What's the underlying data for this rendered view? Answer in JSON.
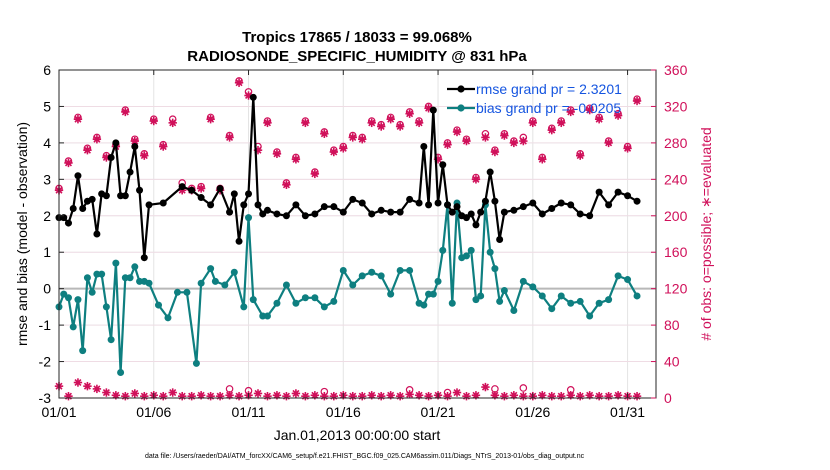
{
  "chart_data": {
    "type": "line",
    "title_line1": "Tropics 17865 / 18033 = 99.068%",
    "title_line2": "RADIOSONDE_SPECIFIC_HUMIDITY @ 831 hPa",
    "xlabel": "Jan.01,2013 00:00:00 start",
    "ylabel_left": "rmse and bias (model - observation)",
    "ylabel_right": "# of obs: o=possible; ∗=evaluated",
    "xlim": [
      0,
      31.5
    ],
    "ylim_left": [
      -3,
      6
    ],
    "ylim_right": [
      0,
      360
    ],
    "x_ticks": [
      {
        "pos": 0,
        "label": "01/01"
      },
      {
        "pos": 5,
        "label": "01/06"
      },
      {
        "pos": 10,
        "label": "01/11"
      },
      {
        "pos": 15,
        "label": "01/16"
      },
      {
        "pos": 20,
        "label": "01/21"
      },
      {
        "pos": 25,
        "label": "01/26"
      },
      {
        "pos": 30,
        "label": "01/31"
      }
    ],
    "y_ticks_left": [
      "-3",
      "-2",
      "-1",
      "0",
      "1",
      "2",
      "3",
      "4",
      "5",
      "6"
    ],
    "y_ticks_right": [
      "0",
      "40",
      "80",
      "120",
      "160",
      "200",
      "240",
      "280",
      "320",
      "360"
    ],
    "legend": [
      {
        "label": "rmse grand pr = 2.3201",
        "color": "#000000"
      },
      {
        "label": "bias grand pr = -0.0205",
        "color": "#0e7f80"
      }
    ],
    "rmse": [
      [
        0,
        1.95
      ],
      [
        0.25,
        1.95
      ],
      [
        0.5,
        1.8
      ],
      [
        0.75,
        2.2
      ],
      [
        1,
        3.1
      ],
      [
        1.25,
        2.2
      ],
      [
        1.5,
        2.4
      ],
      [
        1.75,
        2.45
      ],
      [
        2,
        1.5
      ],
      [
        2.25,
        2.6
      ],
      [
        2.5,
        2.55
      ],
      [
        2.75,
        3.6
      ],
      [
        3,
        4.0
      ],
      [
        3.25,
        2.55
      ],
      [
        3.5,
        2.55
      ],
      [
        3.75,
        3.2
      ],
      [
        4,
        3.9
      ],
      [
        4.25,
        2.7
      ],
      [
        4.5,
        0.85
      ],
      [
        4.75,
        2.3
      ],
      [
        5.5,
        2.35
      ],
      [
        6.5,
        2.8
      ],
      [
        7,
        2.7
      ],
      [
        7.5,
        2.5
      ],
      [
        8,
        2.3
      ],
      [
        8.5,
        2.75
      ],
      [
        9,
        2.1
      ],
      [
        9.25,
        2.6
      ],
      [
        9.5,
        1.3
      ],
      [
        9.75,
        2.3
      ],
      [
        10,
        2.6
      ],
      [
        10.25,
        5.25
      ],
      [
        10.5,
        2.3
      ],
      [
        10.75,
        2.05
      ],
      [
        11,
        2.15
      ],
      [
        11.5,
        2.05
      ],
      [
        12,
        2.0
      ],
      [
        12.5,
        2.3
      ],
      [
        13,
        2.0
      ],
      [
        13.5,
        2.05
      ],
      [
        14,
        2.25
      ],
      [
        14.5,
        2.25
      ],
      [
        15,
        2.1
      ],
      [
        15.5,
        2.45
      ],
      [
        16,
        2.35
      ],
      [
        16.5,
        2.05
      ],
      [
        17,
        2.15
      ],
      [
        17.5,
        2.1
      ],
      [
        18,
        2.1
      ],
      [
        18.5,
        2.45
      ],
      [
        19,
        2.35
      ],
      [
        19.25,
        3.9
      ],
      [
        19.5,
        2.3
      ],
      [
        19.75,
        4.9
      ],
      [
        20,
        2.35
      ],
      [
        20.25,
        3.4
      ],
      [
        20.5,
        2.3
      ],
      [
        20.75,
        2.1
      ],
      [
        21,
        2.25
      ],
      [
        21.25,
        2.0
      ],
      [
        21.5,
        1.95
      ],
      [
        21.75,
        2.05
      ],
      [
        22,
        1.75
      ],
      [
        22.25,
        2.1
      ],
      [
        22.5,
        2.4
      ],
      [
        22.75,
        3.2
      ],
      [
        23,
        2.4
      ],
      [
        23.25,
        1.35
      ],
      [
        23.5,
        2.1
      ],
      [
        24,
        2.15
      ],
      [
        24.5,
        2.25
      ],
      [
        25,
        2.35
      ],
      [
        25.5,
        2.05
      ],
      [
        26,
        2.2
      ],
      [
        26.5,
        2.35
      ],
      [
        27,
        2.3
      ],
      [
        27.5,
        2.05
      ],
      [
        28,
        2.0
      ],
      [
        28.5,
        2.65
      ],
      [
        29,
        2.3
      ],
      [
        29.5,
        2.65
      ],
      [
        30,
        2.55
      ],
      [
        30.5,
        2.4
      ]
    ],
    "bias": [
      [
        0,
        -0.5
      ],
      [
        0.25,
        -0.15
      ],
      [
        0.5,
        -0.25
      ],
      [
        0.75,
        -1.05
      ],
      [
        1,
        -0.3
      ],
      [
        1.25,
        -1.7
      ],
      [
        1.5,
        0.3
      ],
      [
        1.75,
        -0.1
      ],
      [
        2,
        0.4
      ],
      [
        2.25,
        0.4
      ],
      [
        2.5,
        -0.5
      ],
      [
        2.75,
        -1.4
      ],
      [
        3,
        0.7
      ],
      [
        3.25,
        -2.3
      ],
      [
        3.5,
        0.3
      ],
      [
        3.75,
        0.3
      ],
      [
        4,
        0.6
      ],
      [
        4.25,
        0.2
      ],
      [
        4.5,
        0.2
      ],
      [
        4.75,
        0.15
      ],
      [
        5.25,
        -0.45
      ],
      [
        5.75,
        -0.8
      ],
      [
        6.25,
        -0.1
      ],
      [
        6.75,
        -0.1
      ],
      [
        7.25,
        -2.05
      ],
      [
        7.5,
        0.15
      ],
      [
        8,
        0.55
      ],
      [
        8.25,
        0.2
      ],
      [
        8.75,
        0.1
      ],
      [
        9.25,
        0.45
      ],
      [
        9.75,
        -0.5
      ],
      [
        10,
        1.95
      ],
      [
        10.25,
        -0.3
      ],
      [
        10.75,
        -0.75
      ],
      [
        11,
        -0.75
      ],
      [
        11.5,
        -0.4
      ],
      [
        12,
        0.1
      ],
      [
        12.5,
        -0.4
      ],
      [
        13,
        -0.25
      ],
      [
        13.5,
        -0.25
      ],
      [
        14,
        -0.5
      ],
      [
        14.5,
        -0.35
      ],
      [
        15,
        0.5
      ],
      [
        15.5,
        0.1
      ],
      [
        16,
        0.35
      ],
      [
        16.5,
        0.45
      ],
      [
        17,
        0.35
      ],
      [
        17.5,
        -0.15
      ],
      [
        18,
        0.5
      ],
      [
        18.5,
        0.5
      ],
      [
        19,
        -0.4
      ],
      [
        19.25,
        -0.45
      ],
      [
        19.5,
        -0.15
      ],
      [
        19.75,
        -0.15
      ],
      [
        20,
        0.2
      ],
      [
        20.25,
        1.05
      ],
      [
        20.5,
        2.3
      ],
      [
        20.75,
        -0.4
      ],
      [
        21,
        2.35
      ],
      [
        21.25,
        0.85
      ],
      [
        21.5,
        0.9
      ],
      [
        21.75,
        1.05
      ],
      [
        22,
        -0.3
      ],
      [
        22.25,
        -0.2
      ],
      [
        22.5,
        2.3
      ],
      [
        22.75,
        1.0
      ],
      [
        23,
        0.55
      ],
      [
        23.25,
        -0.35
      ],
      [
        23.5,
        -0.05
      ],
      [
        24,
        -0.6
      ],
      [
        24.5,
        0.2
      ],
      [
        25,
        0.05
      ],
      [
        25.5,
        -0.2
      ],
      [
        26,
        -0.55
      ],
      [
        26.5,
        -0.2
      ],
      [
        27,
        -0.4
      ],
      [
        27.5,
        -0.35
      ],
      [
        28,
        -0.75
      ],
      [
        28.5,
        -0.4
      ],
      [
        29,
        -0.3
      ],
      [
        29.5,
        0.35
      ],
      [
        30,
        0.25
      ],
      [
        30.5,
        -0.2
      ]
    ],
    "obs_evaluated": [
      [
        0,
        228
      ],
      [
        0.5,
        258
      ],
      [
        1,
        306
      ],
      [
        1.5,
        272
      ],
      [
        2,
        284
      ],
      [
        2.5,
        264
      ],
      [
        3,
        276
      ],
      [
        3.5,
        314
      ],
      [
        4,
        282
      ],
      [
        4.5,
        266
      ],
      [
        5,
        304
      ],
      [
        5.5,
        276
      ],
      [
        6,
        302
      ],
      [
        6.5,
        228
      ],
      [
        7,
        228
      ],
      [
        7.5,
        230
      ],
      [
        8,
        306
      ],
      [
        8.5,
        228
      ],
      [
        9,
        286
      ],
      [
        9.5,
        346
      ],
      [
        10,
        332
      ],
      [
        10.5,
        272
      ],
      [
        11,
        302
      ],
      [
        11.5,
        268
      ],
      [
        12,
        234
      ],
      [
        12.5,
        262
      ],
      [
        13,
        302
      ],
      [
        13.5,
        246
      ],
      [
        14,
        290
      ],
      [
        14.5,
        270
      ],
      [
        15,
        274
      ],
      [
        15.5,
        286
      ],
      [
        16,
        284
      ],
      [
        16.5,
        302
      ],
      [
        17,
        298
      ],
      [
        17.5,
        306
      ],
      [
        18,
        298
      ],
      [
        18.5,
        312
      ],
      [
        19,
        302
      ],
      [
        19.5,
        318
      ],
      [
        20,
        262
      ],
      [
        20.5,
        278
      ],
      [
        21,
        292
      ],
      [
        21.5,
        282
      ],
      [
        22,
        240
      ],
      [
        22.5,
        286
      ],
      [
        23,
        270
      ],
      [
        23.5,
        288
      ],
      [
        24,
        280
      ],
      [
        24.5,
        282
      ],
      [
        25,
        302
      ],
      [
        25.5,
        262
      ],
      [
        26,
        294
      ],
      [
        26.5,
        302
      ],
      [
        27,
        314
      ],
      [
        27.5,
        266
      ],
      [
        28,
        316
      ],
      [
        28.5,
        306
      ],
      [
        29,
        280
      ],
      [
        29.5,
        310
      ],
      [
        30,
        274
      ],
      [
        30.5,
        326
      ]
    ],
    "obs_possible": [
      [
        0,
        230
      ],
      [
        0.5,
        260
      ],
      [
        1,
        308
      ],
      [
        1.5,
        274
      ],
      [
        2,
        286
      ],
      [
        2.5,
        266
      ],
      [
        3,
        278
      ],
      [
        3.5,
        316
      ],
      [
        4,
        284
      ],
      [
        4.5,
        268
      ],
      [
        5,
        306
      ],
      [
        5.5,
        278
      ],
      [
        6,
        306
      ],
      [
        6.5,
        236
      ],
      [
        7,
        230
      ],
      [
        7.5,
        232
      ],
      [
        8,
        308
      ],
      [
        8.5,
        230
      ],
      [
        9,
        288
      ],
      [
        9.5,
        348
      ],
      [
        10,
        336
      ],
      [
        10.5,
        276
      ],
      [
        11,
        304
      ],
      [
        11.5,
        270
      ],
      [
        12,
        236
      ],
      [
        12.5,
        264
      ],
      [
        13,
        304
      ],
      [
        13.5,
        248
      ],
      [
        14,
        292
      ],
      [
        14.5,
        272
      ],
      [
        15,
        276
      ],
      [
        15.5,
        288
      ],
      [
        16,
        286
      ],
      [
        16.5,
        304
      ],
      [
        17,
        300
      ],
      [
        17.5,
        308
      ],
      [
        18,
        300
      ],
      [
        18.5,
        314
      ],
      [
        19,
        304
      ],
      [
        19.5,
        320
      ],
      [
        20,
        264
      ],
      [
        20.5,
        280
      ],
      [
        21,
        294
      ],
      [
        21.5,
        284
      ],
      [
        22,
        242
      ],
      [
        22.5,
        290
      ],
      [
        23,
        272
      ],
      [
        23.5,
        290
      ],
      [
        24,
        282
      ],
      [
        24.5,
        286
      ],
      [
        25,
        304
      ],
      [
        25.5,
        264
      ],
      [
        26,
        296
      ],
      [
        26.5,
        304
      ],
      [
        27,
        316
      ],
      [
        27.5,
        268
      ],
      [
        28,
        318
      ],
      [
        28.5,
        308
      ],
      [
        29,
        282
      ],
      [
        29.5,
        312
      ],
      [
        30,
        276
      ],
      [
        30.5,
        328
      ]
    ],
    "obs_low_evaluated": [
      [
        0,
        13
      ],
      [
        0.5,
        2
      ],
      [
        1,
        17
      ],
      [
        1.5,
        13
      ],
      [
        2,
        10
      ],
      [
        2.5,
        6
      ],
      [
        3,
        3
      ],
      [
        3.5,
        2
      ],
      [
        4,
        5
      ],
      [
        4.5,
        2
      ],
      [
        5,
        3
      ],
      [
        5.5,
        2
      ],
      [
        6,
        6
      ],
      [
        6.5,
        2
      ],
      [
        7,
        2
      ],
      [
        7.5,
        3
      ],
      [
        8,
        2
      ],
      [
        8.5,
        2
      ],
      [
        9,
        3
      ],
      [
        9.5,
        2
      ],
      [
        10,
        3
      ],
      [
        10.5,
        5
      ],
      [
        11,
        2
      ],
      [
        11.5,
        3
      ],
      [
        12,
        2
      ],
      [
        12.5,
        5
      ],
      [
        13,
        2
      ],
      [
        13.5,
        3
      ],
      [
        14,
        2
      ],
      [
        14.5,
        2
      ],
      [
        15,
        3
      ],
      [
        15.5,
        2
      ],
      [
        16,
        2
      ],
      [
        16.5,
        3
      ],
      [
        17,
        2
      ],
      [
        17.5,
        3
      ],
      [
        18,
        2
      ],
      [
        18.5,
        4
      ],
      [
        19,
        3
      ],
      [
        19.5,
        2
      ],
      [
        20,
        3
      ],
      [
        20.5,
        2
      ],
      [
        21,
        6
      ],
      [
        21.5,
        2
      ],
      [
        22,
        3
      ],
      [
        22.5,
        12
      ],
      [
        23,
        3
      ],
      [
        23.5,
        2
      ],
      [
        24,
        3
      ],
      [
        24.5,
        2
      ],
      [
        25,
        2
      ],
      [
        25.5,
        3
      ],
      [
        26,
        2
      ],
      [
        26.5,
        2
      ],
      [
        27,
        3
      ],
      [
        27.5,
        2
      ],
      [
        28,
        3
      ],
      [
        28.5,
        2
      ],
      [
        29,
        2
      ],
      [
        29.5,
        3
      ],
      [
        30,
        2
      ],
      [
        30.5,
        2
      ]
    ],
    "obs_low_possible": [
      [
        9,
        10
      ],
      [
        10,
        8
      ],
      [
        14,
        7
      ],
      [
        18.5,
        9
      ],
      [
        20.5,
        6
      ],
      [
        23,
        10
      ],
      [
        24.5,
        11
      ],
      [
        27,
        9
      ]
    ],
    "footer": "data file: /Users/raeder/DAI/ATM_forcXX/CAM6_setup/f.e21.FHIST_BGC.f09_025.CAM6assim.011/Diags_NTrS_2013-01/obs_diag_output.nc"
  }
}
